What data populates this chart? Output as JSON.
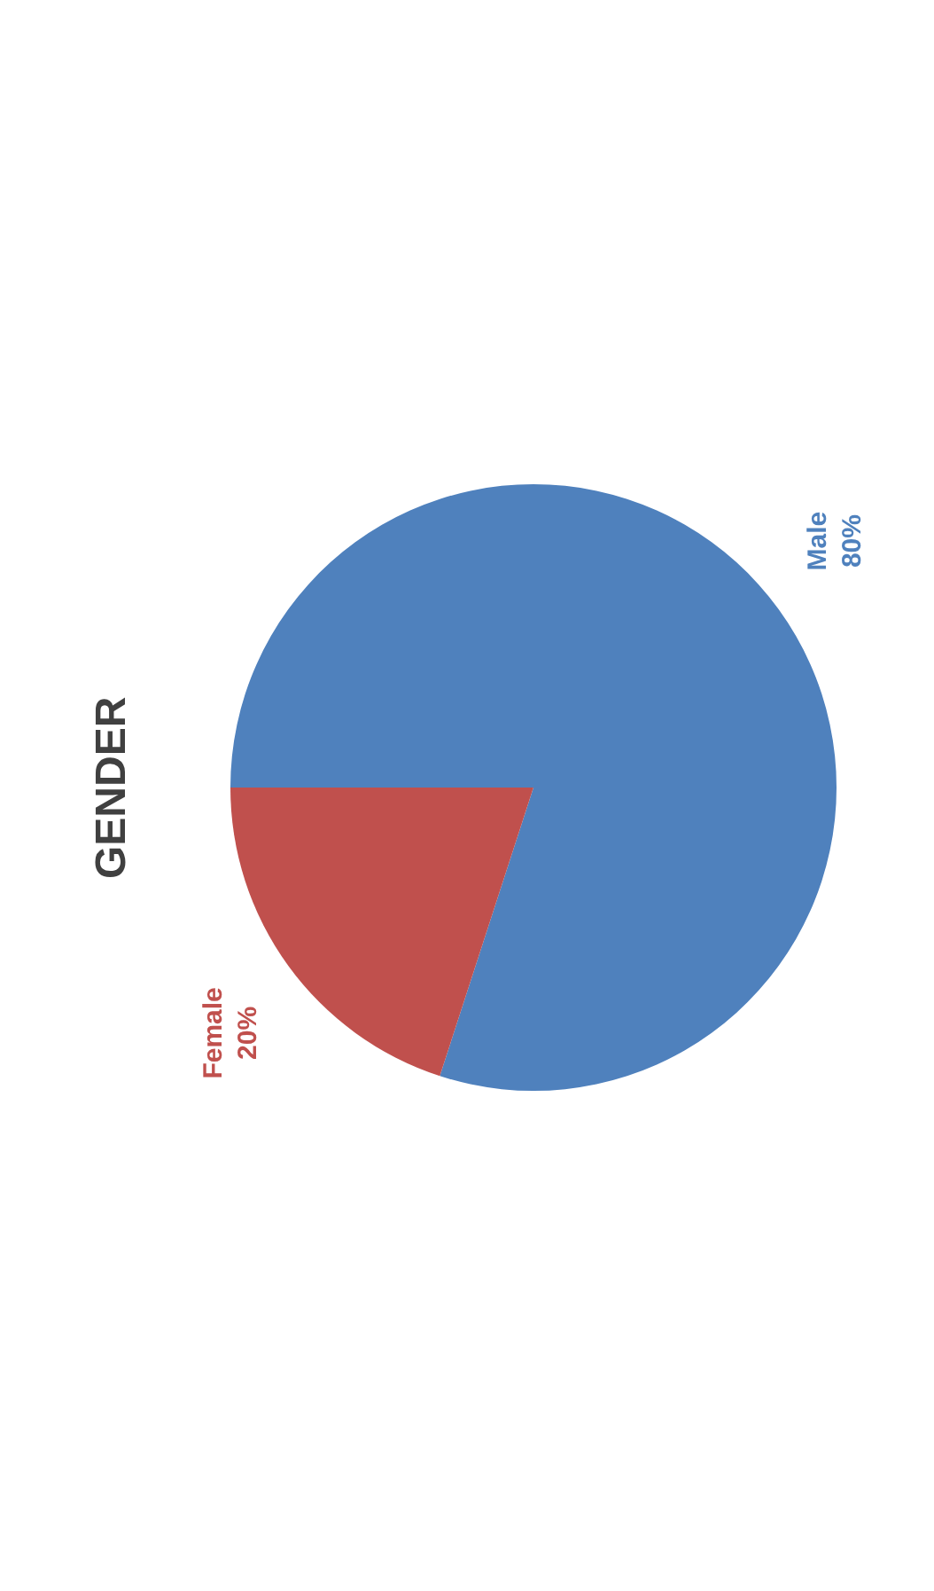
{
  "chart_data": {
    "type": "pie",
    "title": "GENDER",
    "categories": [
      "Male",
      "Female"
    ],
    "values": [
      80,
      20
    ],
    "value_labels": [
      "80%",
      "20%"
    ],
    "colors": [
      "#4f81bd",
      "#c0504d"
    ],
    "legend": false
  }
}
